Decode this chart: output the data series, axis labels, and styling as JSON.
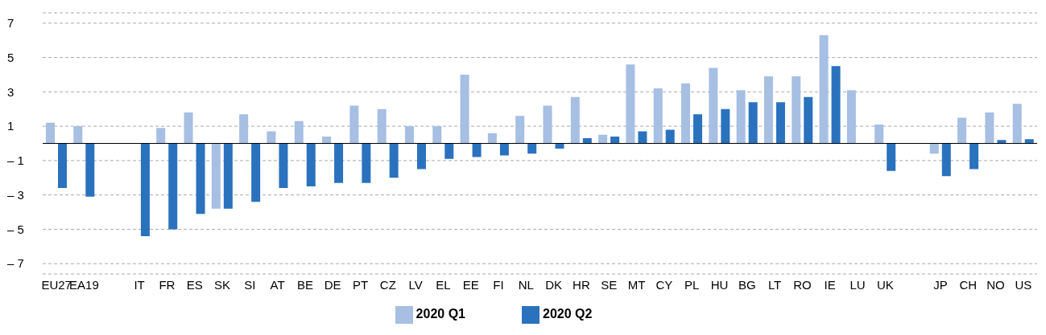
{
  "chart_data": {
    "type": "bar",
    "categories": [
      "EU27",
      "EA19",
      null,
      "IT",
      "FR",
      "ES",
      "SK",
      "SI",
      "AT",
      "BE",
      "DE",
      "PT",
      "CZ",
      "LV",
      "EL",
      "EE",
      "FI",
      "NL",
      "DK",
      "HR",
      "SE",
      "MT",
      "CY",
      "PL",
      "HU",
      "BG",
      "LT",
      "RO",
      "IE",
      "LU",
      "UK",
      null,
      "JP",
      "CH",
      "NO",
      "US"
    ],
    "series": [
      {
        "name": "2020 Q1",
        "color": "#a6bfe3",
        "values": [
          1.2,
          1.0,
          null,
          null,
          0.9,
          1.8,
          -3.8,
          1.7,
          0.7,
          1.3,
          0.4,
          2.2,
          2.0,
          1.0,
          1.0,
          4.0,
          0.6,
          1.6,
          2.2,
          2.7,
          0.5,
          4.6,
          3.2,
          3.5,
          4.4,
          3.1,
          3.9,
          3.9,
          6.3,
          3.1,
          1.1,
          null,
          -0.6,
          1.5,
          1.8,
          2.3
        ]
      },
      {
        "name": "2020 Q2",
        "color": "#2a72be",
        "values": [
          -2.6,
          -3.1,
          null,
          -5.4,
          -5.0,
          -4.1,
          -3.8,
          -3.4,
          -2.6,
          -2.5,
          -2.3,
          -2.3,
          -2.0,
          -1.5,
          -0.9,
          -0.8,
          -0.7,
          -0.6,
          -0.3,
          0.3,
          0.4,
          0.7,
          0.8,
          1.7,
          2.0,
          2.4,
          2.4,
          2.7,
          4.5,
          null,
          -1.6,
          null,
          -1.9,
          -1.5,
          0.2,
          0.25
        ]
      }
    ],
    "ylim": [
      -7.6,
      7.6
    ],
    "yticks": [
      {
        "value": -7,
        "label": "– 7"
      },
      {
        "value": -5,
        "label": "– 5"
      },
      {
        "value": -3,
        "label": "– 3"
      },
      {
        "value": -1,
        "label": "– 1"
      },
      1,
      3,
      5,
      7
    ],
    "grid": "y",
    "legend": "bottom"
  }
}
